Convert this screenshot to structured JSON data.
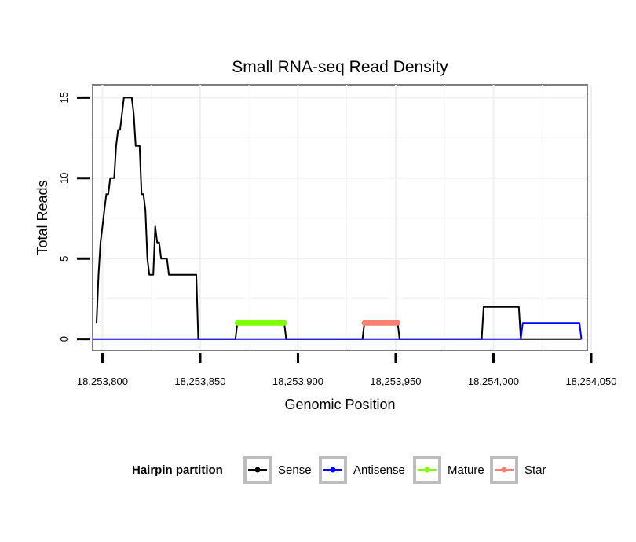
{
  "chart_data": {
    "type": "line",
    "title": "Small RNA-seq Read Density",
    "xlabel": "Genomic Position",
    "ylabel": "Total Reads",
    "xlim": [
      18253795,
      18254048
    ],
    "ylim": [
      -0.7,
      15.8
    ],
    "x_ticks": [
      18253800,
      18253850,
      18253900,
      18253950,
      18254000,
      18254050
    ],
    "x_tick_labels": [
      "18,253,800",
      "18,253,850",
      "18,253,900",
      "18,253,950",
      "18,254,000",
      "18,254,050"
    ],
    "y_ticks": [
      0,
      5,
      10,
      15
    ],
    "y_tick_labels": [
      "0",
      "5",
      "10",
      "15"
    ],
    "grid": true,
    "legend": {
      "title": "Hairpin partition",
      "position": "bottom",
      "entries": [
        "Sense",
        "Antisense",
        "Mature",
        "Star"
      ]
    },
    "series": [
      {
        "name": "Sense",
        "color": "#000000",
        "width": "thin",
        "x": [
          18253797,
          18253798,
          18253799,
          18253800,
          18253801,
          18253802,
          18253803,
          18253804,
          18253805,
          18253806,
          18253807,
          18253808,
          18253809,
          18253810,
          18253811,
          18253812,
          18253813,
          18253814,
          18253815,
          18253816,
          18253817,
          18253818,
          18253819,
          18253820,
          18253821,
          18253822,
          18253823,
          18253824,
          18253825,
          18253826,
          18253827,
          18253828,
          18253829,
          18253830,
          18253831,
          18253832,
          18253833,
          18253834,
          18253835,
          18253836,
          18253837,
          18253838,
          18253839,
          18253840,
          18253841,
          18253842,
          18253843,
          18253844,
          18253845,
          18253846,
          18253847,
          18253848,
          18253849,
          18253868,
          18253869,
          18253893,
          18253894,
          18253933,
          18253934,
          18253951,
          18253952,
          18253994,
          18253995,
          18254013,
          18254014,
          18254045
        ],
        "values": [
          1,
          4,
          6,
          7,
          8,
          9,
          9,
          10,
          10,
          10,
          12,
          13,
          13,
          14,
          15,
          15,
          15,
          15,
          15,
          14,
          12,
          12,
          12,
          9,
          9,
          8,
          5,
          4,
          4,
          4,
          7,
          6,
          6,
          5,
          5,
          5,
          5,
          4,
          4,
          4,
          4,
          4,
          4,
          4,
          4,
          4,
          4,
          4,
          4,
          4,
          4,
          4,
          0,
          0,
          1,
          1,
          0,
          0,
          1,
          1,
          0,
          0,
          2,
          2,
          0,
          0
        ]
      },
      {
        "name": "Antisense",
        "color": "#0000ff",
        "width": "thin",
        "x": [
          18253795,
          18254014,
          18254015,
          18254044,
          18254045
        ],
        "values": [
          0,
          0,
          1,
          1,
          0
        ]
      },
      {
        "name": "Mature",
        "color": "#7fff00",
        "width": "thick",
        "x": [
          18253869,
          18253893
        ],
        "values": [
          1,
          1
        ]
      },
      {
        "name": "Star",
        "color": "#fa8072",
        "width": "thick",
        "x": [
          18253934,
          18253951
        ],
        "values": [
          1,
          1
        ]
      }
    ]
  }
}
